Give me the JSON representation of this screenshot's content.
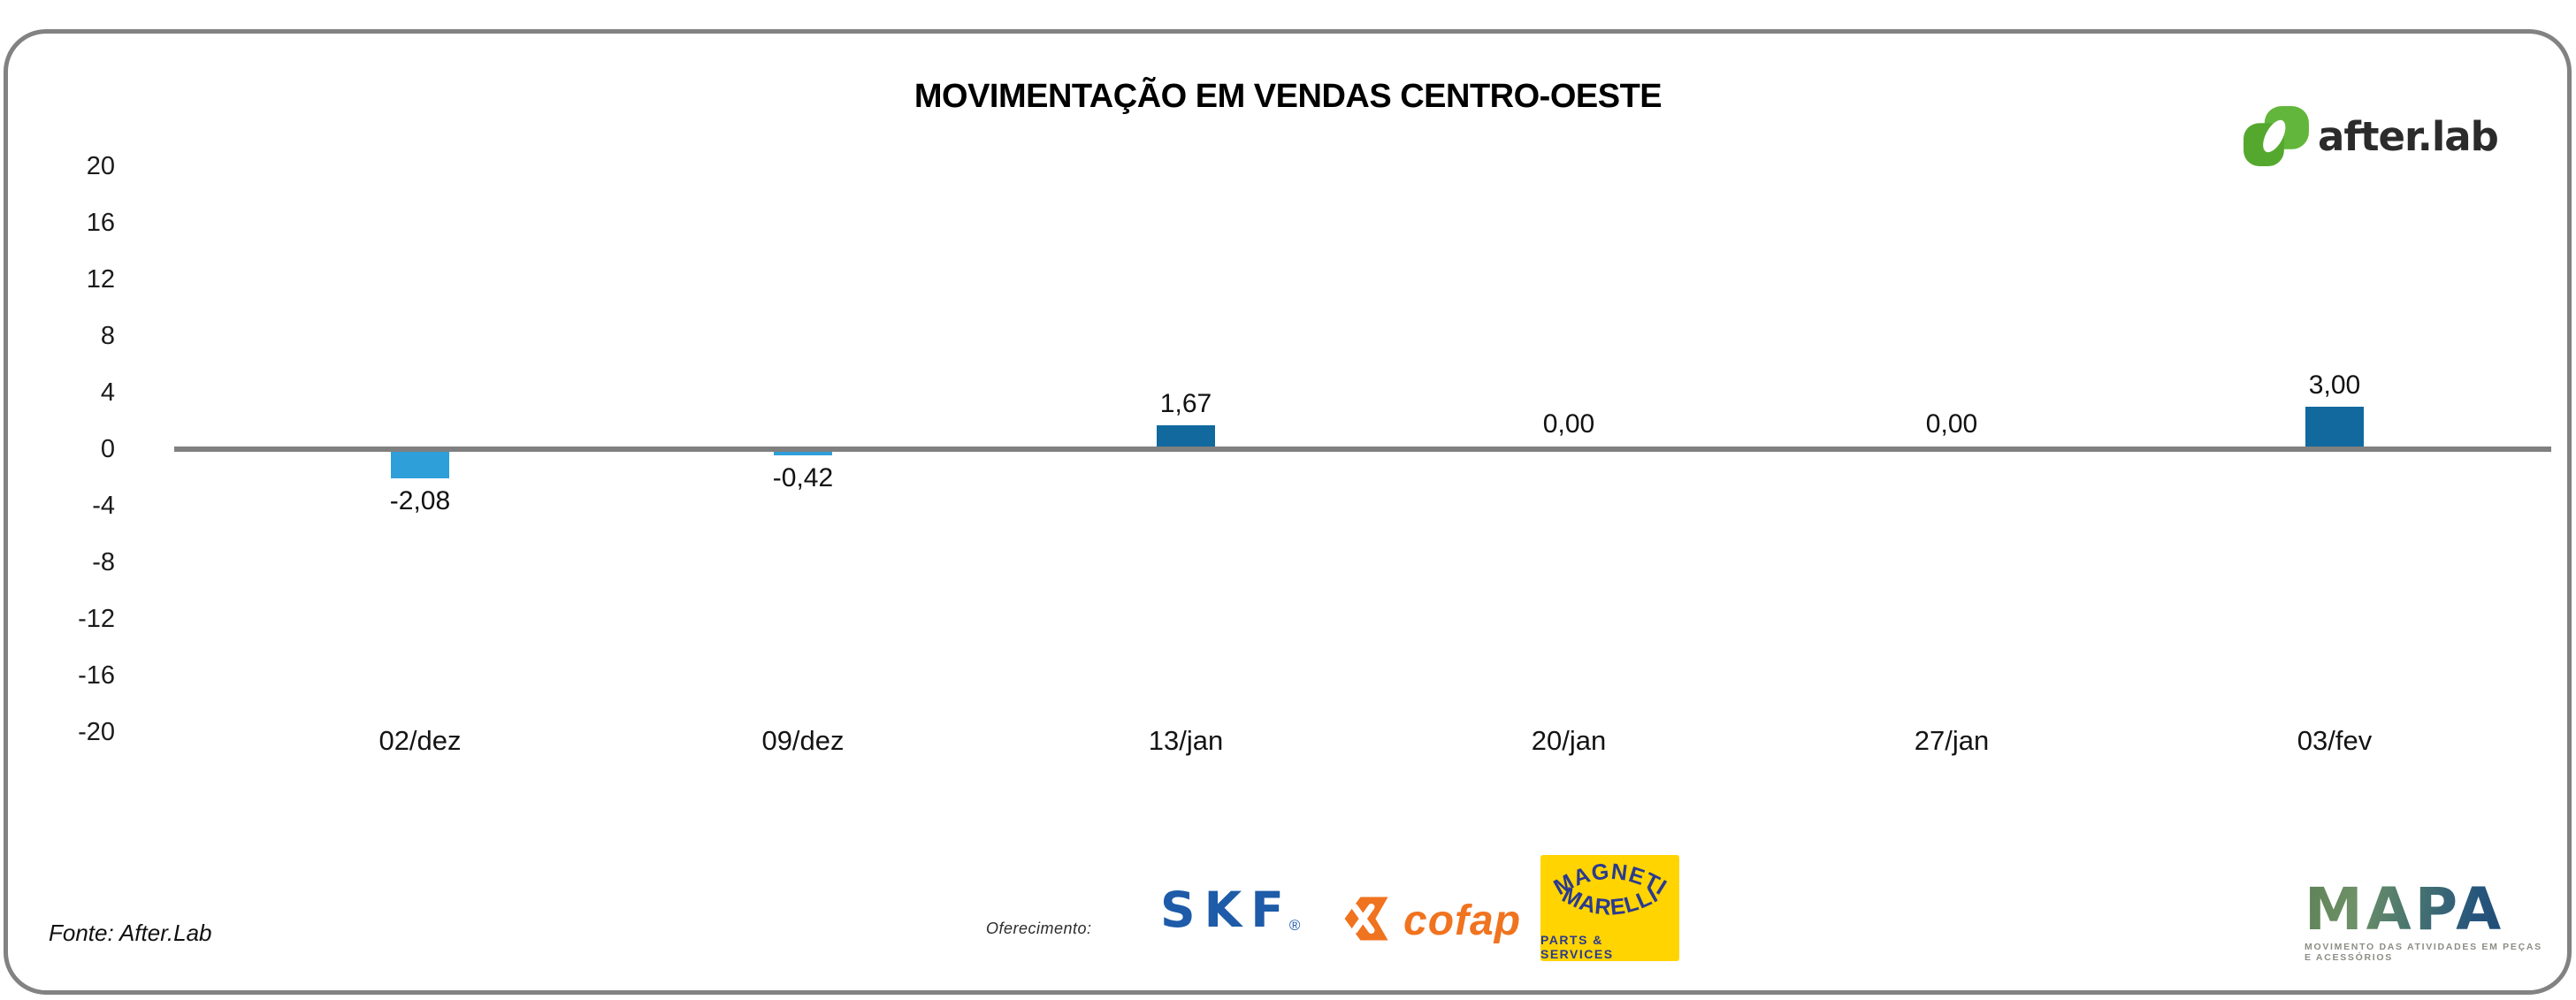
{
  "title": "MOVIMENTAÇÃO EM VENDAS CENTRO-OESTE",
  "brand": {
    "logo_text": "after.lab"
  },
  "colors": {
    "positive_bar": "#11699e",
    "negative_bar": "#2e9fd9",
    "axis_line": "#808080",
    "border_gray": "#828282",
    "afterlab_green_light": "#62b63c",
    "afterlab_green_dark": "#54a82e",
    "skf_blue": "#1e5ba8",
    "cofap_orange": "#f0731f",
    "magneti_yellow": "#ffd400",
    "magneti_navy": "#2b3a8f"
  },
  "chart_data": {
    "type": "bar",
    "title": "MOVIMENTAÇÃO EM VENDAS CENTRO-OESTE",
    "categories": [
      "02/dez",
      "09/dez",
      "13/jan",
      "20/jan",
      "27/jan",
      "03/fev"
    ],
    "values": [
      -2.08,
      -0.42,
      1.67,
      0.0,
      0.0,
      3.0
    ],
    "value_labels": [
      "-2,08",
      "-0,42",
      "1,67",
      "0,00",
      "0,00",
      "3,00"
    ],
    "xlabel": "",
    "ylabel": "",
    "ylim": [
      -20,
      20
    ],
    "ytick_step": 4,
    "yticks": [
      20,
      16,
      12,
      8,
      4,
      0,
      -4,
      -8,
      -12,
      -16,
      -20
    ],
    "ytick_labels": [
      "20",
      "16",
      "12",
      "8",
      "4",
      "0",
      "-4",
      "-8",
      "-12",
      "-16",
      "-20"
    ],
    "grid": false,
    "legend": false,
    "bar_colors": {
      "positive": "#11699e",
      "negative": "#2e9fd9"
    }
  },
  "footer": {
    "source": "Fonte: After.Lab",
    "sponsor_label": "Oferecimento:",
    "sponsors": {
      "skf": "SKF",
      "skf_reg": "®",
      "cofap": "cofap",
      "magneti_line1": "MAGNETI",
      "magneti_line2": "MARELLI",
      "magneti_sub": "PARTS & SERVICES",
      "mapa": "MAPA",
      "mapa_tagline": "MOVIMENTO DAS ATIVIDADES EM PEÇAS E ACESSÓRIOS"
    }
  }
}
